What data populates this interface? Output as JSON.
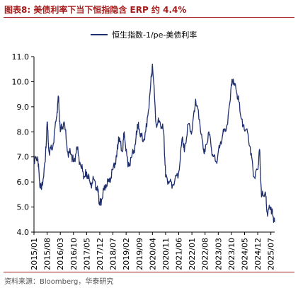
{
  "figure": {
    "title": "图表8:  美债利率下当下恒指隐含 ERP 约 4.4%",
    "source": "资料来源：Bloomberg，华泰研究"
  },
  "colors": {
    "accent": "#a51b1b",
    "line": "#1f2f6e"
  },
  "chart_data": {
    "type": "line",
    "title": "",
    "xlabel": "",
    "ylabel": "",
    "ylim": [
      4.0,
      11.0
    ],
    "yticks": [
      "4.0",
      "5.0",
      "6.0",
      "7.0",
      "8.0",
      "9.0",
      "10.0",
      "11.0"
    ],
    "xticks": [
      "2015/01",
      "2015/08",
      "2016/03",
      "2016/10",
      "2017/05",
      "2017/12",
      "2018/07",
      "2019/02",
      "2019/09",
      "2020/04",
      "2020/11",
      "2021/06",
      "2022/01",
      "2022/08",
      "2023/03",
      "2023/10",
      "2024/05",
      "2024/12",
      "2025/07"
    ],
    "grid": false,
    "legend": "top-center",
    "series": [
      {
        "name": "恒生指数-1/pe-美债利率",
        "x": [
          "2015/01",
          "2015/03",
          "2015/04",
          "2015/05",
          "2015/07",
          "2015/08",
          "2015/09",
          "2015/11",
          "2016/01",
          "2016/02",
          "2016/03",
          "2016/05",
          "2016/07",
          "2016/09",
          "2016/10",
          "2016/12",
          "2017/02",
          "2017/04",
          "2017/05",
          "2017/07",
          "2017/09",
          "2017/11",
          "2017/12",
          "2018/01",
          "2018/03",
          "2018/05",
          "2018/07",
          "2018/09",
          "2018/10",
          "2018/12",
          "2019/01",
          "2019/03",
          "2019/05",
          "2019/07",
          "2019/08",
          "2019/09",
          "2019/11",
          "2020/01",
          "2020/03",
          "2020/04",
          "2020/06",
          "2020/08",
          "2020/10",
          "2020/11",
          "2021/01",
          "2021/03",
          "2021/06",
          "2021/08",
          "2021/09",
          "2021/11",
          "2022/01",
          "2022/03",
          "2022/05",
          "2022/07",
          "2022/08",
          "2022/10",
          "2022/12",
          "2023/02",
          "2023/04",
          "2023/06",
          "2023/08",
          "2023/10",
          "2023/11",
          "2024/01",
          "2024/02",
          "2024/04",
          "2024/06",
          "2024/08",
          "2024/10",
          "2024/12",
          "2025/01",
          "2025/02",
          "2025/04",
          "2025/05",
          "2025/07",
          "2025/08",
          "2025/09"
        ],
        "values": [
          6.8,
          7.0,
          6.0,
          5.7,
          6.8,
          8.4,
          7.2,
          7.4,
          8.6,
          9.4,
          8.0,
          8.4,
          7.2,
          7.1,
          6.8,
          7.3,
          6.6,
          6.2,
          6.4,
          5.9,
          6.1,
          5.6,
          5.1,
          5.3,
          5.9,
          6.0,
          6.5,
          7.0,
          7.8,
          7.2,
          8.0,
          6.6,
          7.0,
          7.5,
          8.3,
          8.1,
          7.6,
          8.2,
          9.8,
          10.7,
          8.3,
          8.4,
          8.0,
          6.2,
          6.0,
          5.9,
          6.4,
          7.8,
          7.2,
          8.3,
          8.0,
          9.3,
          8.5,
          7.3,
          7.2,
          8.0,
          7.1,
          6.8,
          7.5,
          8.0,
          8.3,
          9.9,
          10.1,
          9.5,
          9.2,
          8.2,
          8.1,
          7.4,
          6.2,
          6.5,
          7.3,
          5.4,
          5.6,
          4.8,
          5.0,
          4.7,
          4.4
        ]
      }
    ]
  }
}
